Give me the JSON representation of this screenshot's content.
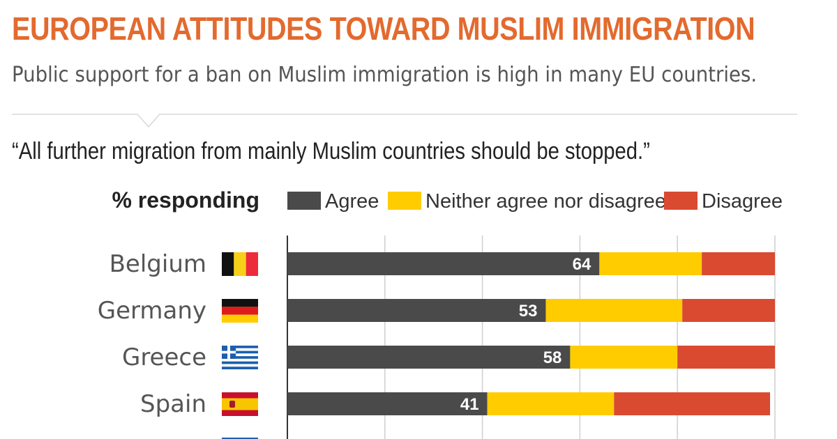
{
  "title": "EUROPEAN ATTITUDES TOWARD MUSLIM IMMIGRATION",
  "subtitle": "Public support for a ban on Muslim immigration is high in many EU countries.",
  "question": "“All further migration from mainly Muslim countries should be stopped.”",
  "colors": {
    "title": "#e36a2e",
    "agree": "#4a4a4a",
    "neither": "#ffcc00",
    "disagree": "#d94a31"
  },
  "chart_data": {
    "type": "bar",
    "orientation": "horizontal",
    "stacked": true,
    "axis_label": "% responding",
    "xlim": [
      0,
      100
    ],
    "grid": true,
    "gridlines": [
      0,
      20,
      40,
      60,
      80,
      100
    ],
    "legend_position": "top",
    "categories": [
      "Belgium",
      "Germany",
      "Greece",
      "Spain"
    ],
    "flags": [
      "belgium-flag-icon",
      "germany-flag-icon",
      "greece-flag-icon",
      "spain-flag-icon"
    ],
    "series": [
      {
        "name": "Agree",
        "color": "#4a4a4a",
        "values": [
          64,
          53,
          58,
          41
        ],
        "show_labels": true
      },
      {
        "name": "Neither agree nor disagree",
        "color": "#ffcc00",
        "values": [
          21,
          28,
          22,
          26
        ],
        "show_labels": false
      },
      {
        "name": "Disagree",
        "color": "#d94a31",
        "values": [
          15,
          19,
          20,
          32
        ],
        "show_labels": false
      }
    ]
  }
}
